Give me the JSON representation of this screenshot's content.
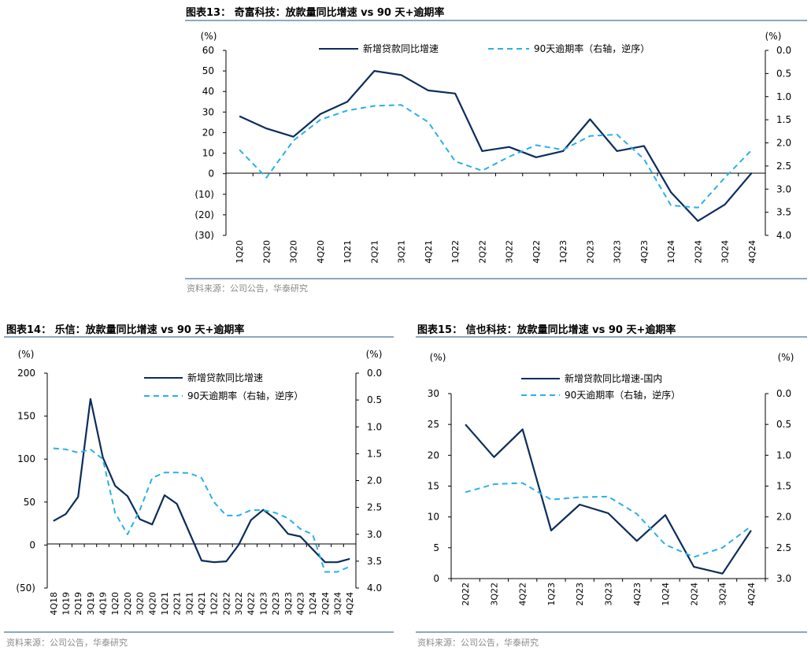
{
  "colors": {
    "primary": "#0b2d5b",
    "dashed": "#2ab0e8",
    "divider": "#1e4f86"
  },
  "figures": [
    {
      "title": "图表13： 奇富科技：放款量同比增速 vs 90 天+逾期率",
      "source": "资料来源：公司公告，华泰研究",
      "chart_data": {
        "type": "line",
        "left_unit": "(%)",
        "right_unit": "(%)",
        "left_ylim": [
          -30,
          60
        ],
        "left_ticks": [
          "60",
          "50",
          "40",
          "30",
          "20",
          "10",
          "0",
          "(10)",
          "(20)",
          "(30)"
        ],
        "right_ylim": [
          0,
          4
        ],
        "right_reversed": true,
        "right_ticks": [
          "0.0",
          "0.5",
          "1.0",
          "1.5",
          "2.0",
          "2.5",
          "3.0",
          "3.5",
          "4.0"
        ],
        "legend_position": "top",
        "categories": [
          "1Q20",
          "2Q20",
          "3Q20",
          "4Q20",
          "1Q21",
          "2Q21",
          "3Q21",
          "4Q21",
          "1Q22",
          "2Q22",
          "3Q22",
          "4Q22",
          "1Q23",
          "2Q23",
          "3Q23",
          "4Q23",
          "1Q24",
          "2Q24",
          "3Q24",
          "4Q24"
        ],
        "series": [
          {
            "name": "新增贷款同比增速",
            "axis": "left",
            "style": "solid",
            "values": [
              28,
              22,
              18,
              29,
              35,
              50,
              48,
              40.5,
              39,
              11,
              13,
              8,
              11,
              26.5,
              11,
              13.5,
              -9,
              -23,
              -15,
              0.5
            ]
          },
          {
            "name": "90天逾期率（右轴，逆序）",
            "axis": "right",
            "style": "dashed",
            "values": [
              2.15,
              2.75,
              1.95,
              1.5,
              1.3,
              1.2,
              1.18,
              1.55,
              2.4,
              2.6,
              2.3,
              2.05,
              2.15,
              1.85,
              1.82,
              2.35,
              3.35,
              3.4,
              2.75,
              2.15
            ]
          }
        ]
      }
    },
    {
      "title": "图表14： 乐信：放款量同比增速 vs 90 天+逾期率",
      "source": "资料来源：公司公告，华泰研究",
      "chart_data": {
        "type": "line",
        "left_unit": "(%)",
        "right_unit": "(%)",
        "left_ylim": [
          -50,
          200
        ],
        "left_ticks": [
          "200",
          "150",
          "100",
          "50",
          "0",
          "(50)"
        ],
        "right_ylim": [
          0,
          4
        ],
        "right_reversed": true,
        "right_ticks": [
          "0.0",
          "0.5",
          "1.0",
          "1.5",
          "2.0",
          "2.5",
          "3.0",
          "3.5",
          "4.0"
        ],
        "legend_position": "top-right",
        "categories": [
          "4Q18",
          "1Q19",
          "2Q19",
          "3Q19",
          "4Q19",
          "1Q20",
          "2Q20",
          "3Q20",
          "4Q20",
          "1Q21",
          "2Q21",
          "3Q21",
          "4Q21",
          "1Q22",
          "2Q22",
          "3Q22",
          "4Q22",
          "1Q23",
          "2Q23",
          "3Q23",
          "4Q23",
          "1Q24",
          "2Q24",
          "3Q24",
          "4Q24"
        ],
        "series": [
          {
            "name": "新增贷款同比增速",
            "axis": "left",
            "style": "solid",
            "values": [
              28,
              36,
              56,
              170,
              102,
              69,
              57,
              30,
              24,
              58,
              48,
              15,
              -18,
              -20,
              -19,
              0,
              29,
              41,
              30,
              13,
              10,
              -5,
              -20,
              -20,
              -16
            ]
          },
          {
            "name": "90天逾期率（右轴，逆序）",
            "axis": "right",
            "style": "dashed",
            "values": [
              1.4,
              1.42,
              1.48,
              1.42,
              1.6,
              2.6,
              3.0,
              2.55,
              1.95,
              1.85,
              1.85,
              1.86,
              1.95,
              2.4,
              2.65,
              2.65,
              2.55,
              2.55,
              2.6,
              2.7,
              2.9,
              3.0,
              3.7,
              3.7,
              3.6
            ]
          }
        ]
      }
    },
    {
      "title": "图表15： 信也科技：放款量同比增速 vs 90 天+逾期率",
      "source": "资料来源：公司公告，华泰研究",
      "chart_data": {
        "type": "line",
        "left_unit": "(%)",
        "right_unit": "(%)",
        "left_ylim": [
          0,
          30
        ],
        "left_ticks": [
          "30",
          "25",
          "20",
          "15",
          "10",
          "5",
          "0"
        ],
        "right_ylim": [
          0,
          3
        ],
        "right_reversed": true,
        "right_ticks": [
          "0.0",
          "0.5",
          "1.0",
          "1.5",
          "2.0",
          "2.5",
          "3.0"
        ],
        "legend_position": "top",
        "categories": [
          "2Q22",
          "3Q22",
          "4Q22",
          "1Q23",
          "2Q23",
          "3Q23",
          "4Q23",
          "1Q24",
          "2Q24",
          "3Q24",
          "4Q24"
        ],
        "series": [
          {
            "name": "新增贷款同比增速-国内",
            "axis": "left",
            "style": "solid",
            "values": [
              25,
              19.7,
              24.2,
              7.8,
              12,
              10.6,
              6.1,
              10.3,
              1.9,
              0.8,
              7.8
            ]
          },
          {
            "name": "90天逾期率（右轴，逆序）",
            "axis": "right",
            "style": "dashed",
            "values": [
              1.6,
              1.47,
              1.45,
              1.72,
              1.68,
              1.67,
              1.95,
              2.45,
              2.65,
              2.5,
              2.15
            ]
          }
        ]
      }
    }
  ]
}
